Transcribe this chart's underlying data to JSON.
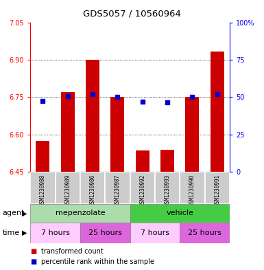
{
  "title": "GDS5057 / 10560964",
  "samples": [
    "GSM1230988",
    "GSM1230989",
    "GSM1230986",
    "GSM1230987",
    "GSM1230992",
    "GSM1230993",
    "GSM1230990",
    "GSM1230991"
  ],
  "bar_values": [
    6.575,
    6.77,
    6.9,
    6.75,
    6.535,
    6.538,
    6.75,
    6.935
  ],
  "bar_bottom": 6.45,
  "dot_values": [
    6.735,
    6.755,
    6.763,
    6.75,
    6.732,
    6.729,
    6.75,
    6.763
  ],
  "ylim_left": [
    6.45,
    7.05
  ],
  "ylim_right": [
    0,
    100
  ],
  "yticks_left": [
    6.45,
    6.6,
    6.75,
    6.9,
    7.05
  ],
  "yticks_right": [
    0,
    25,
    50,
    75,
    100
  ],
  "ytick_labels_right": [
    "0",
    "25",
    "50",
    "75",
    "100%"
  ],
  "grid_lines": [
    6.6,
    6.75,
    6.9
  ],
  "bar_color": "#cc0000",
  "dot_color": "#0000cc",
  "agent_groups": [
    {
      "label": "mepenzolate",
      "start": 0,
      "end": 4,
      "color": "#aaddaa"
    },
    {
      "label": "vehicle",
      "start": 4,
      "end": 8,
      "color": "#44cc44"
    }
  ],
  "time_groups": [
    {
      "label": "7 hours",
      "start": 0,
      "end": 2,
      "color": "#ffccff"
    },
    {
      "label": "25 hours",
      "start": 2,
      "end": 4,
      "color": "#dd66dd"
    },
    {
      "label": "7 hours",
      "start": 4,
      "end": 6,
      "color": "#ffccff"
    },
    {
      "label": "25 hours",
      "start": 6,
      "end": 8,
      "color": "#dd66dd"
    }
  ],
  "legend": [
    {
      "label": "transformed count",
      "color": "#cc0000"
    },
    {
      "label": "percentile rank within the sample",
      "color": "#0000cc"
    }
  ],
  "xlabel_agent": "agent",
  "xlabel_time": "time",
  "sample_bg_color": "#cccccc",
  "bar_width": 0.55
}
